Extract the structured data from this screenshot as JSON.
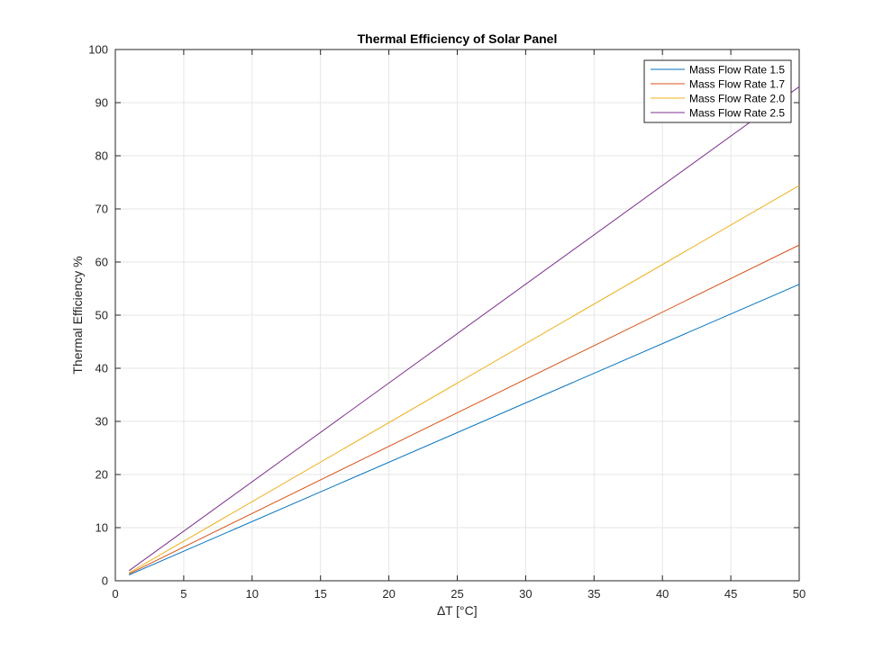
{
  "chart_data": {
    "type": "line",
    "title": "Thermal Efficiency of Solar Panel",
    "xlabel": "∆T  [°C]",
    "ylabel": "Thermal Efficiency %",
    "xlim": [
      0,
      50
    ],
    "ylim": [
      0,
      100
    ],
    "xticks": [
      0,
      5,
      10,
      15,
      20,
      25,
      30,
      35,
      40,
      45,
      50
    ],
    "yticks": [
      0,
      10,
      20,
      30,
      40,
      50,
      60,
      70,
      80,
      90,
      100
    ],
    "grid": true,
    "legend_position": "top-right",
    "series": [
      {
        "name": "Mass Flow Rate 1.5",
        "color": "#0072BD",
        "x": [
          1,
          50
        ],
        "y": [
          1.1,
          55.8
        ]
      },
      {
        "name": "Mass Flow Rate 1.7",
        "color": "#D95319",
        "x": [
          1,
          50
        ],
        "y": [
          1.3,
          63.2
        ]
      },
      {
        "name": "Mass Flow Rate 2.0",
        "color": "#EDB120",
        "x": [
          1,
          50
        ],
        "y": [
          1.5,
          74.4
        ]
      },
      {
        "name": "Mass Flow Rate 2.5",
        "color": "#7E2F8E",
        "x": [
          1,
          50
        ],
        "y": [
          1.9,
          93.0
        ]
      }
    ]
  }
}
